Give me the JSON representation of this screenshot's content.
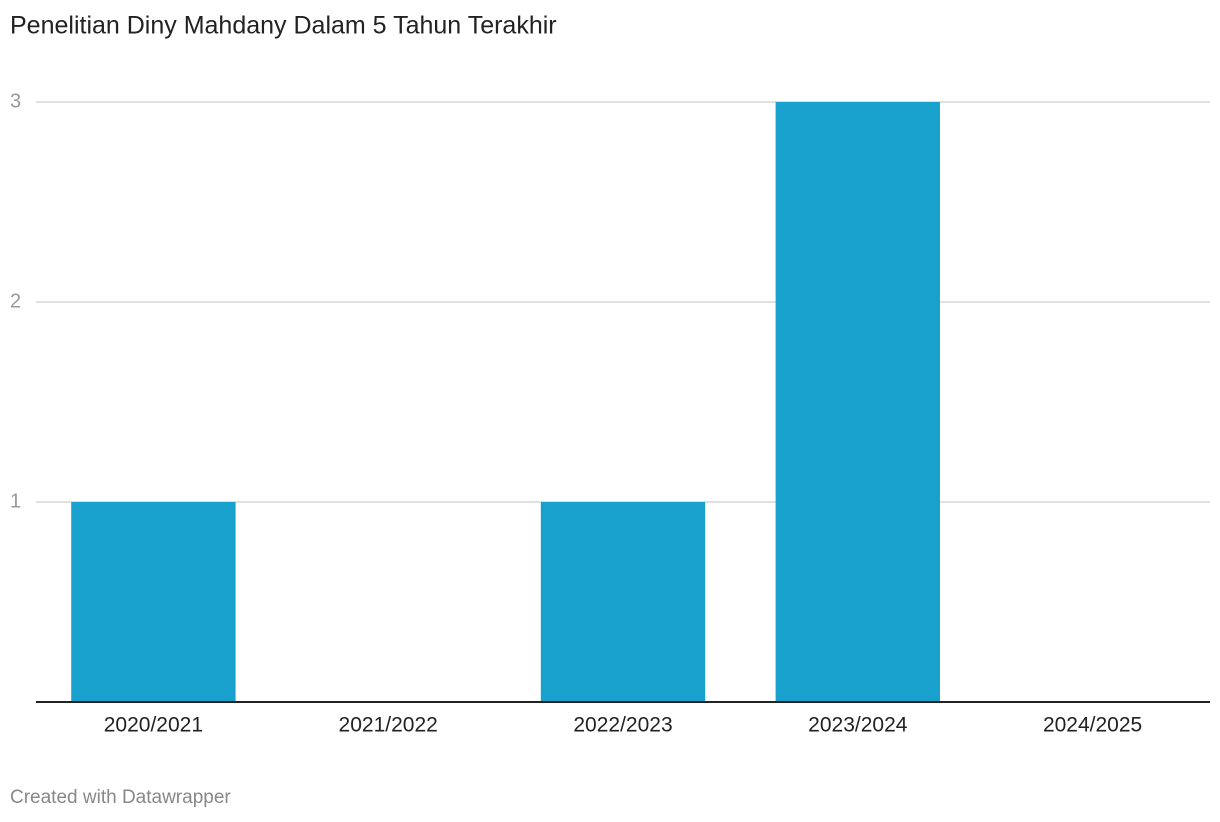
{
  "chart_data": {
    "type": "bar",
    "title": "Penelitian Diny Mahdany Dalam 5 Tahun Terakhir",
    "categories": [
      "2020/2021",
      "2021/2022",
      "2022/2023",
      "2023/2024",
      "2024/2025"
    ],
    "values": [
      1,
      0,
      1,
      3,
      0
    ],
    "color": "#18a1cd",
    "ylim": [
      0,
      3
    ],
    "yticks": [
      1,
      2,
      3
    ],
    "grid": true,
    "credit": "Created with Datawrapper"
  }
}
